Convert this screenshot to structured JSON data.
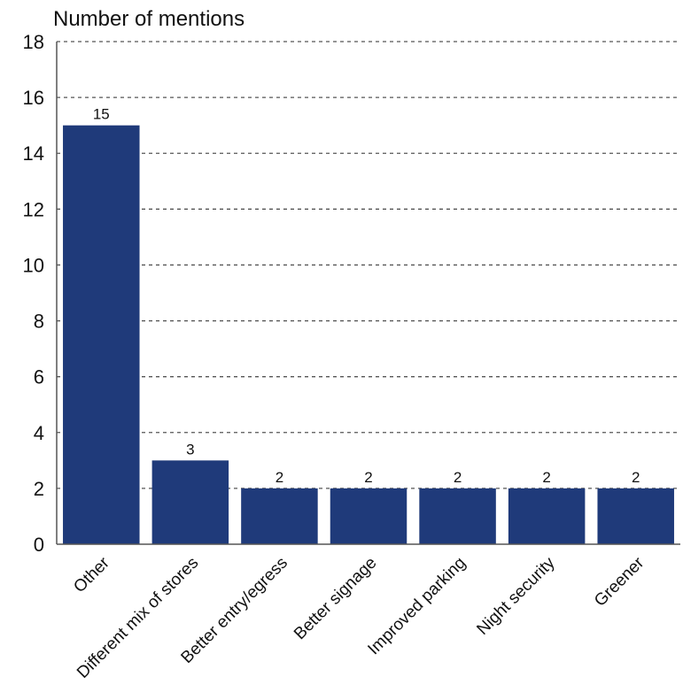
{
  "chart_data": {
    "type": "bar",
    "title": "",
    "ylabel": "Number of mentions",
    "xlabel": "",
    "categories": [
      "Other",
      "Different mix of stores",
      "Better entry/egress",
      "Better signage",
      "Improved parking",
      "Night security",
      "Greener"
    ],
    "values": [
      15,
      3,
      2,
      2,
      2,
      2,
      2
    ],
    "data_labels": [
      "15",
      "3",
      "2",
      "2",
      "2",
      "2",
      "2"
    ],
    "ylim": [
      0,
      18
    ],
    "yticks": [
      "0",
      "2",
      "4",
      "6",
      "8",
      "10",
      "12",
      "14",
      "16",
      "18"
    ],
    "grid": "horizontal dashed",
    "bar_color": "#1f3a7a",
    "legend": "none"
  }
}
